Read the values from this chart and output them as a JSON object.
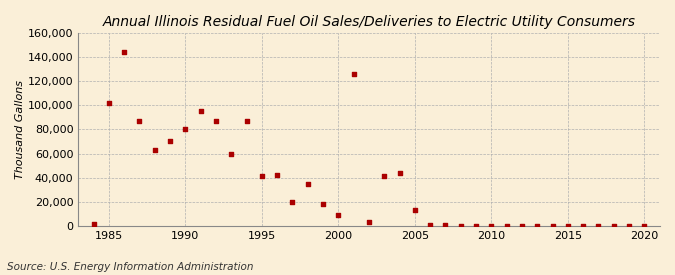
{
  "title": "Annual Illinois Residual Fuel Oil Sales/Deliveries to Electric Utility Consumers",
  "ylabel": "Thousand Gallons",
  "source": "Source: U.S. Energy Information Administration",
  "background_color": "#faefd8",
  "marker_color": "#aa0000",
  "years": [
    1984,
    1985,
    1986,
    1987,
    1988,
    1989,
    1990,
    1991,
    1992,
    1993,
    1994,
    1995,
    1996,
    1997,
    1998,
    1999,
    2000,
    2001,
    2002,
    2003,
    2004,
    2005,
    2006,
    2007,
    2008,
    2009,
    2010,
    2011,
    2012,
    2013,
    2014,
    2015,
    2016,
    2017,
    2018,
    2019,
    2020
  ],
  "values": [
    1200,
    102000,
    144000,
    87000,
    63000,
    70000,
    80000,
    95000,
    87000,
    60000,
    87000,
    41000,
    42000,
    20000,
    35000,
    18000,
    9000,
    126000,
    3000,
    41000,
    44000,
    13000,
    800,
    400,
    300,
    200,
    200,
    200,
    200,
    200,
    200,
    200,
    200,
    200,
    200,
    200,
    200
  ],
  "ylim": [
    0,
    160000
  ],
  "yticks": [
    0,
    20000,
    40000,
    60000,
    80000,
    100000,
    120000,
    140000,
    160000
  ],
  "xlim": [
    1983,
    2021
  ],
  "xticks": [
    1985,
    1990,
    1995,
    2000,
    2005,
    2010,
    2015,
    2020
  ],
  "title_fontsize": 10,
  "label_fontsize": 8,
  "tick_fontsize": 8,
  "source_fontsize": 7.5
}
